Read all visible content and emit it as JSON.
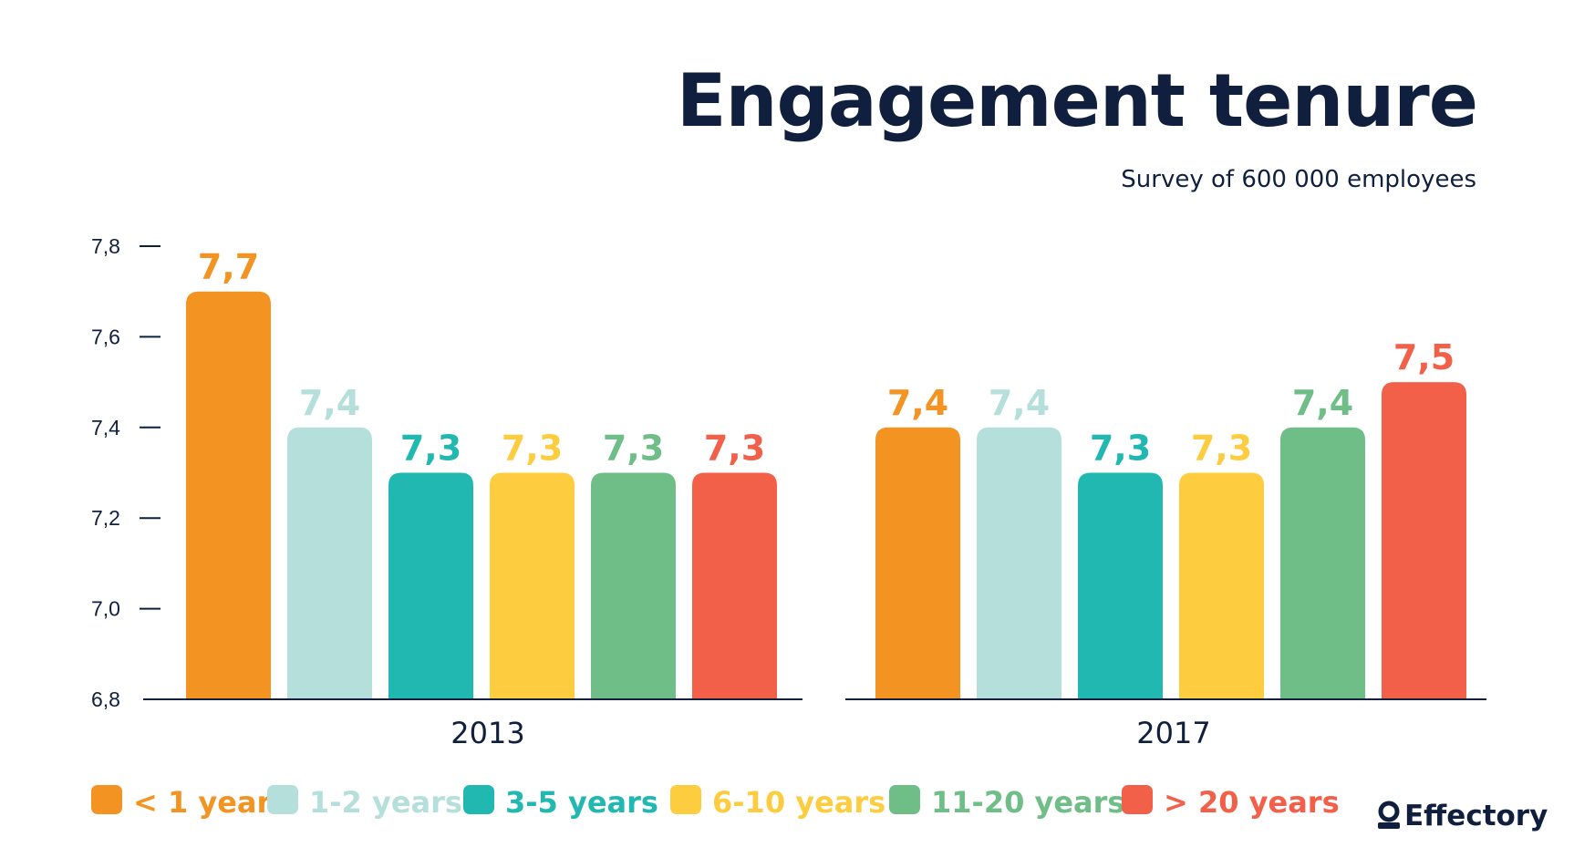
{
  "chart_data": {
    "type": "bar",
    "title": "Engagement tenure",
    "subtitle": "Survey of 600 000 employees",
    "groups": [
      "2013",
      "2017"
    ],
    "categories": [
      "< 1 year",
      "1-2 years",
      "3-5 years",
      "6-10 years",
      "11-20 years",
      "> 20 years"
    ],
    "series": [
      {
        "group": "2013",
        "values": [
          7.7,
          7.4,
          7.3,
          7.3,
          7.3,
          7.3
        ],
        "labels": [
          "7,7",
          "7,4",
          "7,3",
          "7,3",
          "7,3",
          "7,3"
        ]
      },
      {
        "group": "2017",
        "values": [
          7.4,
          7.4,
          7.3,
          7.3,
          7.4,
          7.5
        ],
        "labels": [
          "7,4",
          "7,4",
          "7,3",
          "7,3",
          "7,4",
          "7,5"
        ]
      }
    ],
    "yticks": [
      "6,8",
      "7,0",
      "7,2",
      "7,4",
      "7,6",
      "7,8"
    ],
    "ylim": [
      6.8,
      7.8
    ],
    "grid": false,
    "legend_position": "bottom",
    "colors": [
      "#f39322",
      "#b5dfdb",
      "#22b8b2",
      "#fdcd3f",
      "#6fbd87",
      "#f2604a"
    ]
  },
  "brand": {
    "name": "Effectory"
  }
}
